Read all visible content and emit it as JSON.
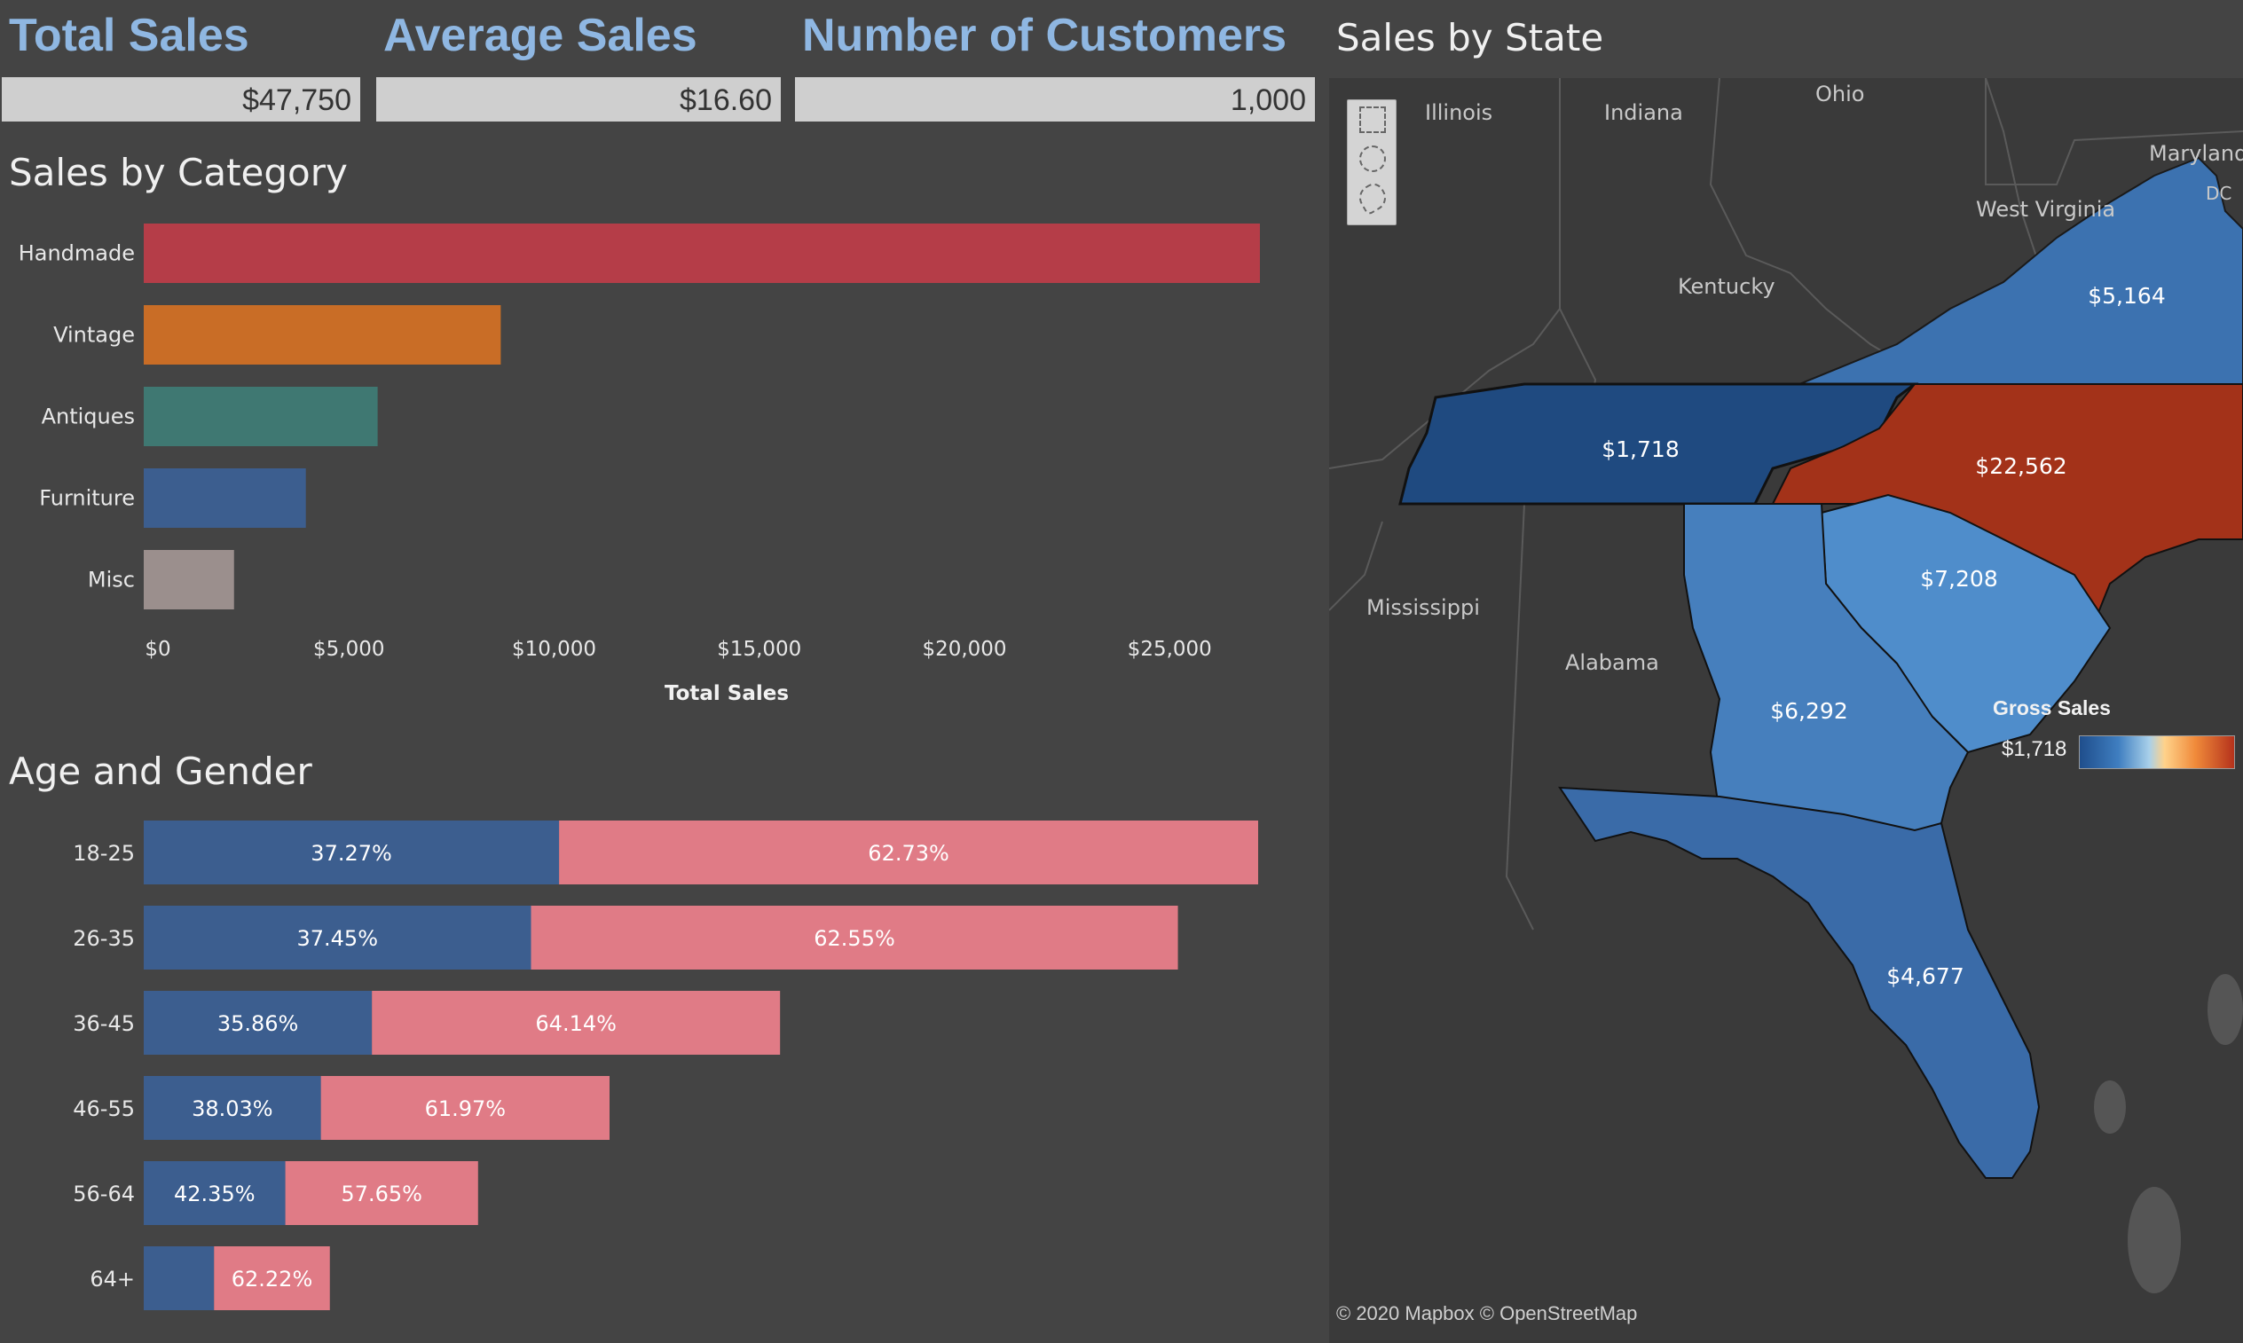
{
  "kpis": {
    "total_sales": {
      "title": "Total Sales",
      "value": "$47,750"
    },
    "average_sales": {
      "title": "Average Sales",
      "value": "$16.60"
    },
    "customers": {
      "title": "Number of Customers",
      "value": "1,000"
    }
  },
  "sections": {
    "category_title": "Sales by Category",
    "age_gender_title": "Age and Gender",
    "state_title": "Sales by State"
  },
  "chart_data": [
    {
      "type": "bar",
      "orientation": "horizontal",
      "title": "Sales by Category",
      "xlabel": "Total Sales",
      "categories": [
        "Handmade",
        "Vintage",
        "Antiques",
        "Furniture",
        "Misc"
      ],
      "values": [
        27200,
        8700,
        5700,
        3950,
        2200
      ],
      "colors": [
        "#b53d48",
        "#c96d26",
        "#3f7872",
        "#3c5e8f",
        "#9b8f8d"
      ],
      "xlim": [
        0,
        27200
      ],
      "xticks": [
        0,
        5000,
        10000,
        15000,
        20000,
        25000
      ],
      "xtick_labels": [
        "$0",
        "$5,000",
        "$10,000",
        "$15,000",
        "$20,000",
        "$25,000"
      ],
      "grid": false
    },
    {
      "type": "bar",
      "orientation": "horizontal",
      "stacked": true,
      "title": "Age and Gender",
      "categories": [
        "18-25",
        "26-35",
        "36-45",
        "46-55",
        "56-64",
        "64+"
      ],
      "totals_relative": [
        1.0,
        0.928,
        0.571,
        0.418,
        0.3,
        0.167
      ],
      "series": [
        {
          "color": "#3c5e8f",
          "values": [
            37.27,
            37.45,
            35.86,
            38.03,
            42.35,
            37.78
          ],
          "labels": [
            "37.27%",
            "37.45%",
            "35.86%",
            "38.03%",
            "42.35%",
            ""
          ]
        },
        {
          "color": "#e07b86",
          "values": [
            62.73,
            62.55,
            64.14,
            61.97,
            57.65,
            62.22
          ],
          "labels": [
            "62.73%",
            "62.55%",
            "64.14%",
            "61.97%",
            "57.65%",
            "62.22%"
          ]
        }
      ]
    }
  ],
  "map": {
    "title": "Sales by State",
    "legend_title": "Gross Sales",
    "legend_min": "$1,718",
    "credit": "© 2020 Mapbox  © OpenStreetMap",
    "context_labels": [
      "Illinois",
      "Indiana",
      "Ohio",
      "Maryland",
      "DC",
      "West Virginia",
      "Kentucky",
      "Mississippi",
      "Alabama"
    ],
    "states": [
      {
        "name": "Virginia",
        "value": "$5,164",
        "color": "#3c72b0"
      },
      {
        "name": "Tennessee",
        "value": "$1,718",
        "color": "#1f4a80"
      },
      {
        "name": "North Carolina",
        "value": "$22,562",
        "color": "#a33219"
      },
      {
        "name": "South Carolina",
        "value": "$7,208",
        "color": "#4f8dcb"
      },
      {
        "name": "Georgia",
        "value": "$6,292",
        "color": "#467fbd"
      },
      {
        "name": "Florida",
        "value": "$4,677",
        "color": "#3a6ba8"
      }
    ]
  }
}
